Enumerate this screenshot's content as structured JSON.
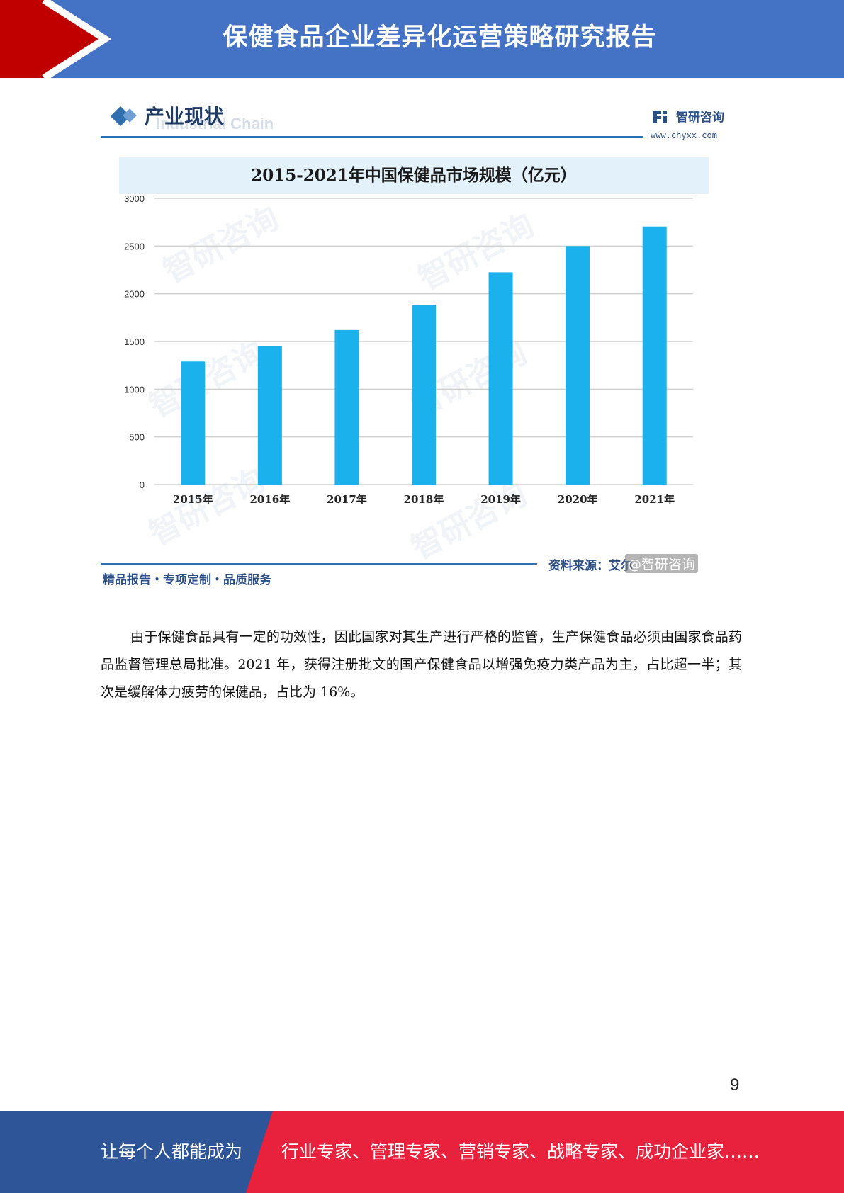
{
  "header": {
    "title": "保健食品企业差异化运营策略研究报告",
    "colors": {
      "band": "#4472c4",
      "accent": "#c00000"
    }
  },
  "figure": {
    "section_title": "产业现状",
    "section_ghost": "Industrial Chain",
    "brand_name": "智研咨询",
    "brand_url": "www.chyxx.com",
    "tagline": "精品报告・专项定制・品质服务",
    "source": "资料来源：艾尔",
    "source_tag": "@智研咨询",
    "watermark_text": "智研咨询"
  },
  "chart_data": {
    "type": "bar",
    "title": "2015-2021年中国保健品市场规模（亿元）",
    "categories": [
      "2015年",
      "2016年",
      "2017年",
      "2018年",
      "2019年",
      "2020年",
      "2021年"
    ],
    "values": [
      1290,
      1455,
      1620,
      1885,
      2225,
      2500,
      2705
    ],
    "ylim": [
      0,
      3000
    ],
    "yticks": [
      0,
      500,
      1000,
      1500,
      2000,
      2500,
      3000
    ],
    "grid": true,
    "bar_color": "#1bb1ec"
  },
  "body": {
    "paragraph": "由于保健食品具有一定的功效性，因此国家对其生产进行严格的监管，生产保健食品必须由国家食品药品监督管理总局批准。2021 年，获得注册批文的国产保健食品以增强免疫力类产品为主，占比超一半；其次是缓解体力疲劳的保健品，占比为 16%。"
  },
  "page_number": "9",
  "footer": {
    "left": "让每个人都能成为",
    "right": "行业专家、管理专家、营销专家、战略专家、成功企业家……",
    "colors": {
      "left": "#2e5597",
      "right": "#e8213c"
    }
  }
}
